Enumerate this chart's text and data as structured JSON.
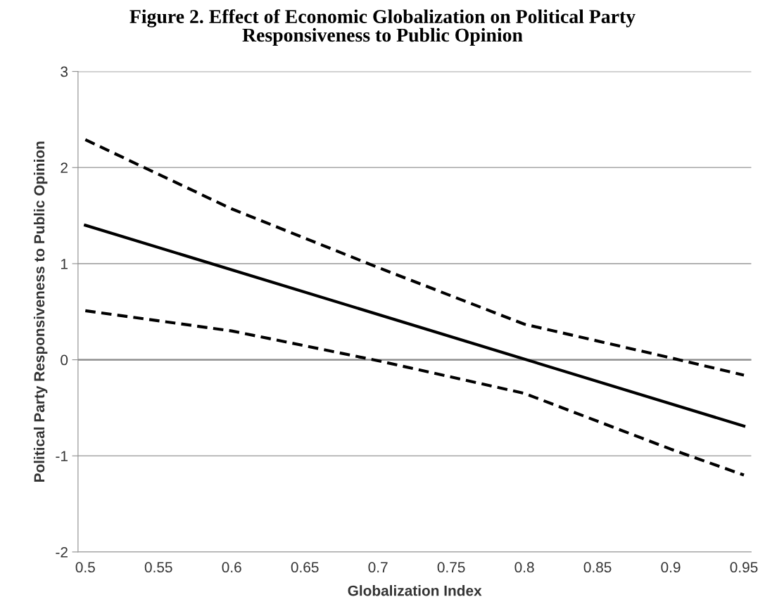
{
  "chart_data": {
    "type": "line",
    "title": "Figure 2. Effect of Economic Globalization on Political Party\nResponsiveness to Public Opinion",
    "xlabel": "Globalization Index",
    "ylabel": "Political Party Responsiveness to Public Opinion",
    "series": [
      {
        "color": "#000000",
        "line_style": "solid",
        "x": [
          0.5,
          0.95
        ],
        "values": [
          1.4,
          -0.69
        ]
      },
      {
        "color": "#000000",
        "line_style": "dashed",
        "x": [
          0.5,
          0.6,
          0.7,
          0.8,
          0.9,
          0.95
        ],
        "values": [
          2.29,
          1.57,
          0.96,
          0.37,
          0.02,
          -0.16
        ]
      },
      {
        "color": "#000000",
        "line_style": "dashed",
        "x": [
          0.5,
          0.6,
          0.7,
          0.8,
          0.9,
          0.95
        ],
        "values": [
          0.51,
          0.3,
          -0.01,
          -0.35,
          -0.93,
          -1.2
        ]
      }
    ],
    "xlim": [
      0.495,
      0.955
    ],
    "xticks": [
      0.5,
      0.55,
      0.6,
      0.65,
      0.7,
      0.75,
      0.8,
      0.85,
      0.9,
      0.95
    ],
    "ylim": [
      -2,
      3
    ],
    "yticks": [
      -2,
      -1,
      0,
      1,
      2,
      3
    ],
    "grid": "y",
    "ref_lines": [
      {
        "axis": "y",
        "value": 0,
        "color": "#8c8c8c"
      }
    ]
  }
}
